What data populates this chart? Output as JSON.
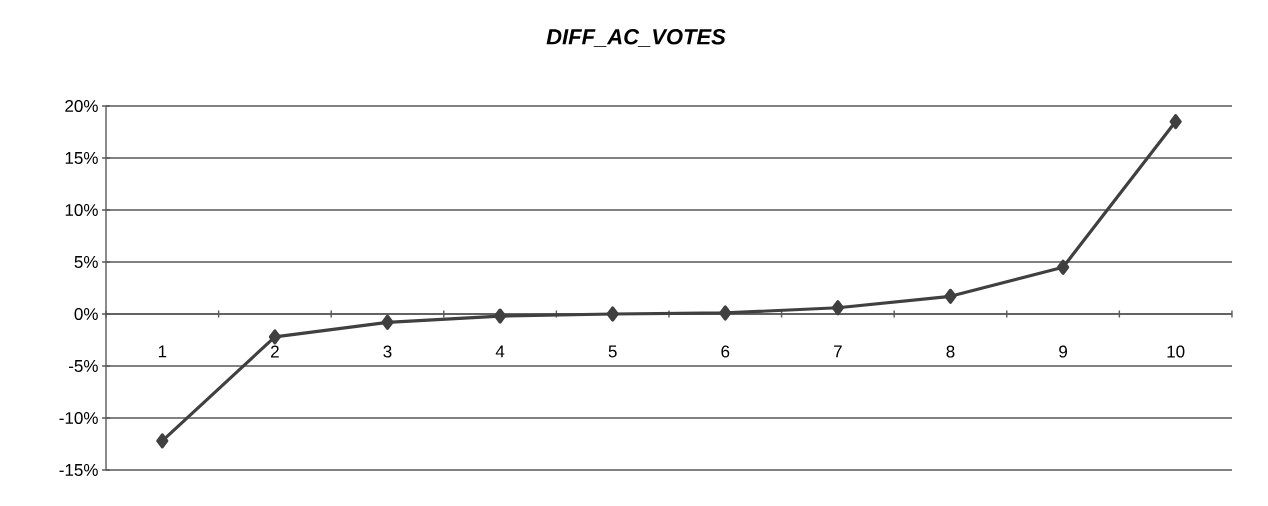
{
  "chart_data": {
    "type": "line",
    "title": "DIFF_AC_VOTES",
    "categories": [
      "1",
      "2",
      "3",
      "4",
      "5",
      "6",
      "7",
      "8",
      "9",
      "10"
    ],
    "series": [
      {
        "color": "#404040",
        "values": [
          -12.2,
          -2.2,
          -0.8,
          -0.2,
          0.0,
          0.1,
          0.6,
          1.7,
          4.5,
          18.5
        ]
      }
    ],
    "ylim": [
      -15,
      20
    ],
    "yticks": [
      {
        "value": -15,
        "label": "-15%"
      },
      {
        "value": -10,
        "label": "-10%"
      },
      {
        "value": -5,
        "label": "-5%"
      },
      {
        "value": 0,
        "label": "0%"
      },
      {
        "value": 5,
        "label": "5%"
      },
      {
        "value": 10,
        "label": "10%"
      },
      {
        "value": 15,
        "label": "15%"
      },
      {
        "value": 20,
        "label": "20%"
      }
    ],
    "grid": "y",
    "marker": "diamond",
    "line_style": "solid"
  }
}
